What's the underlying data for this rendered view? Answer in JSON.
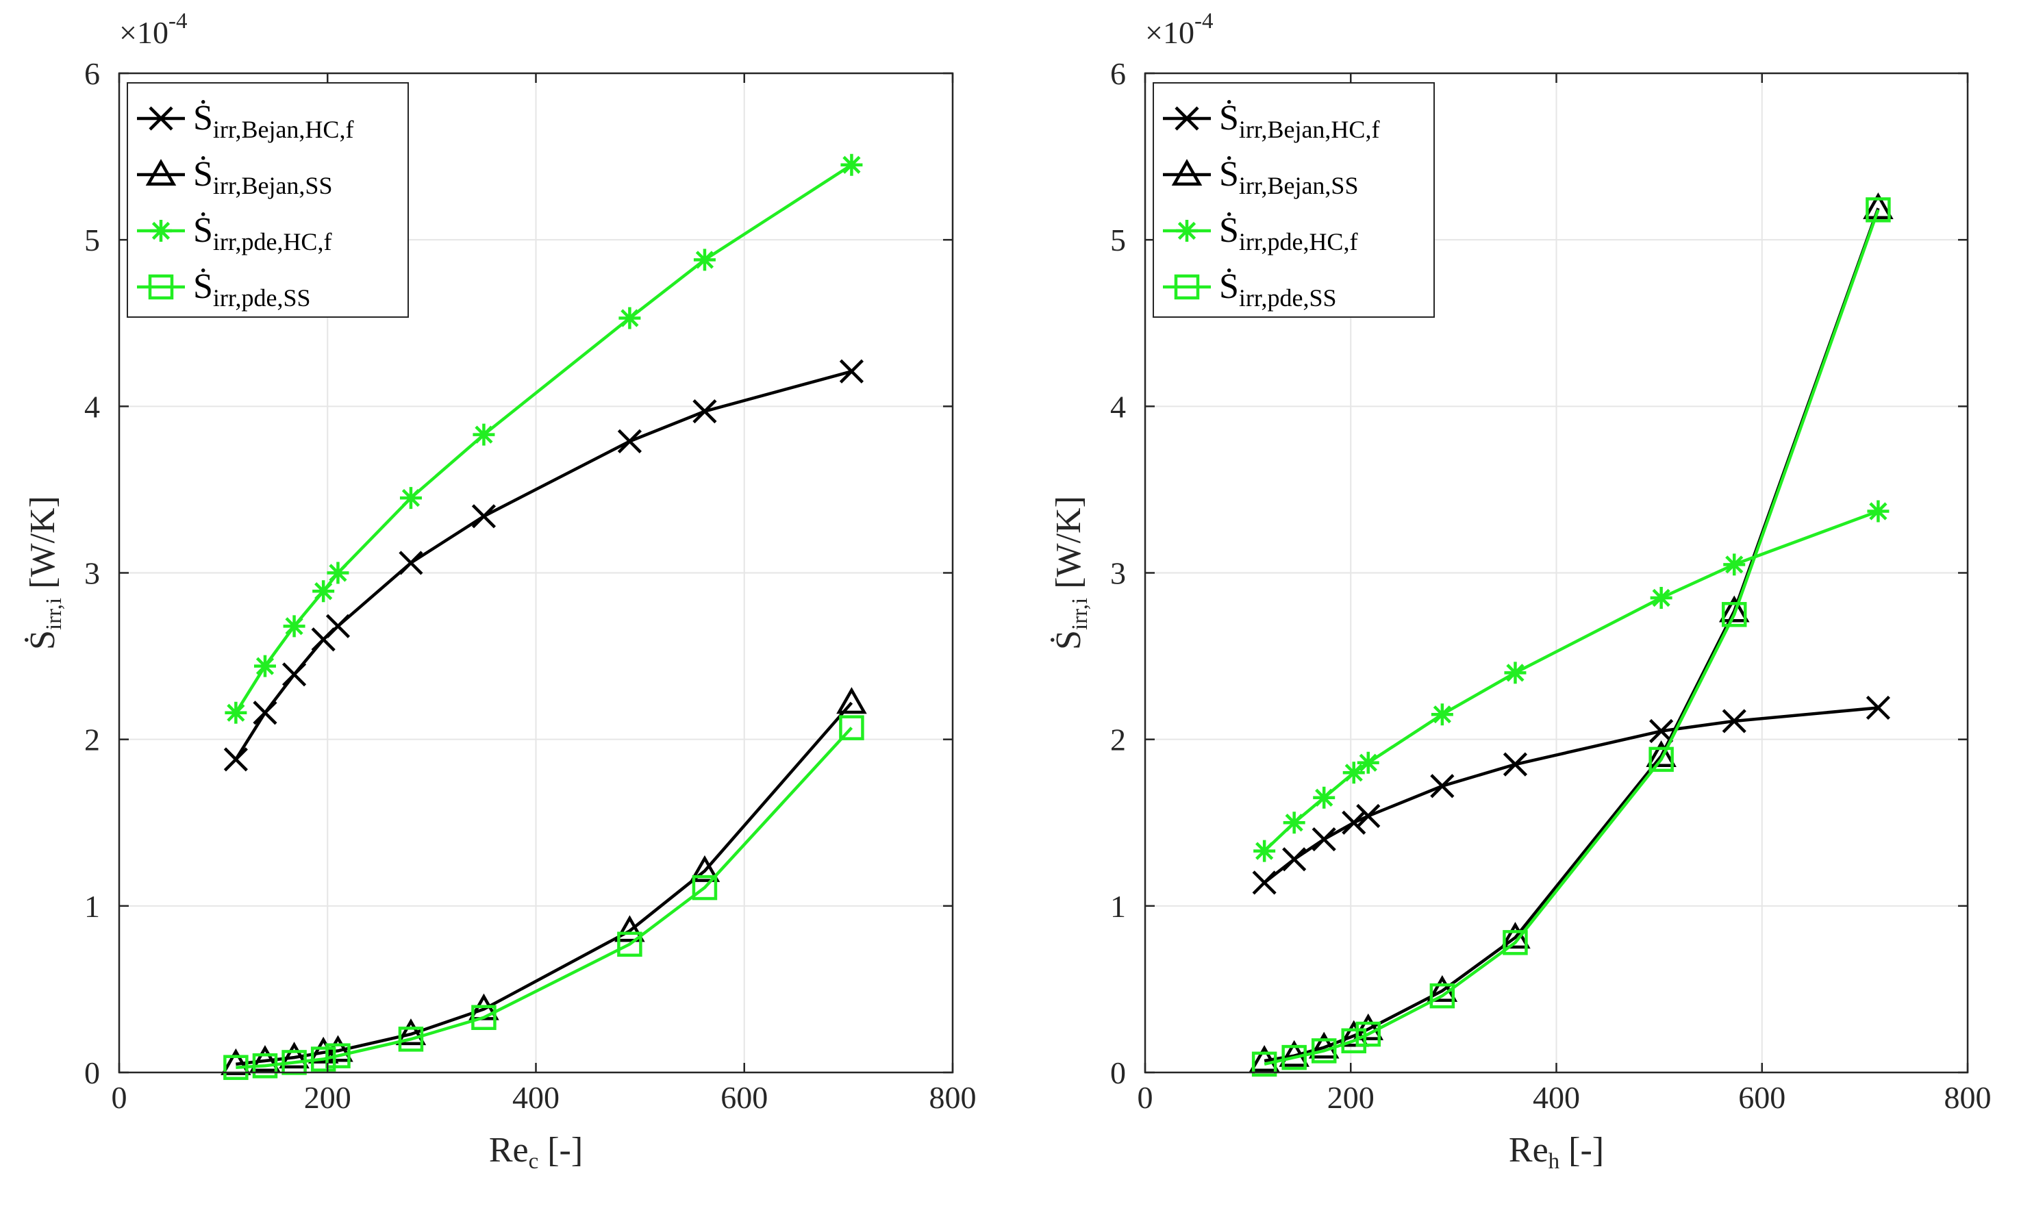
{
  "chart_data": [
    {
      "type": "line",
      "multiplier_label": "×10",
      "multiplier_exp": "-4",
      "x_label": {
        "base": "Re",
        "sub": "c",
        "suffix": "[-]"
      },
      "y_label": {
        "base": "Ṡ",
        "sub": "irr,i",
        "suffix": "[W/K]"
      },
      "xlim": [
        0,
        800
      ],
      "ylim": [
        0,
        6
      ],
      "xticks": [
        "0",
        "200",
        "400",
        "600",
        "800"
      ],
      "yticks": [
        "0",
        "1",
        "2",
        "3",
        "4",
        "5",
        "6"
      ],
      "grid": true,
      "legend_position": "top-left",
      "series": [
        {
          "name": "Ṡ",
          "sub": "irr,Bejan,HC,f",
          "color": "#000000",
          "marker": "x",
          "x": [
            112,
            140,
            168,
            196,
            210,
            280,
            350,
            490,
            562,
            703
          ],
          "y": [
            1.88,
            2.16,
            2.39,
            2.6,
            2.68,
            3.06,
            3.34,
            3.79,
            3.97,
            4.21
          ]
        },
        {
          "name": "Ṡ",
          "sub": "irr,Bejan,SS",
          "color": "#000000",
          "marker": "triangle",
          "x": [
            112,
            140,
            168,
            196,
            210,
            280,
            350,
            490,
            562,
            703
          ],
          "y": [
            0.05,
            0.07,
            0.09,
            0.12,
            0.13,
            0.23,
            0.38,
            0.85,
            1.21,
            2.22
          ]
        },
        {
          "name": "Ṡ",
          "sub": "irr,pde,HC,f",
          "color": "#22ee22",
          "marker": "asterisk",
          "x": [
            112,
            140,
            168,
            196,
            210,
            280,
            350,
            490,
            562,
            703
          ],
          "y": [
            2.16,
            2.44,
            2.68,
            2.89,
            3.0,
            3.45,
            3.83,
            4.53,
            4.88,
            5.45
          ]
        },
        {
          "name": "Ṡ",
          "sub": "irr,pde,SS",
          "color": "#22ee22",
          "marker": "square",
          "x": [
            112,
            140,
            168,
            196,
            210,
            280,
            350,
            490,
            562,
            703
          ],
          "y": [
            0.03,
            0.04,
            0.06,
            0.08,
            0.1,
            0.2,
            0.33,
            0.77,
            1.11,
            2.07
          ]
        }
      ]
    },
    {
      "type": "line",
      "multiplier_label": "×10",
      "multiplier_exp": "-4",
      "x_label": {
        "base": "Re",
        "sub": "h",
        "suffix": "[-]"
      },
      "y_label": {
        "base": "Ṡ",
        "sub": "irr,i",
        "suffix": "[W/K]"
      },
      "xlim": [
        0,
        800
      ],
      "ylim": [
        0,
        6
      ],
      "xticks": [
        "0",
        "200",
        "400",
        "600",
        "800"
      ],
      "yticks": [
        "0",
        "1",
        "2",
        "3",
        "4",
        "5",
        "6"
      ],
      "grid": true,
      "legend_position": "top-left",
      "series": [
        {
          "name": "Ṡ",
          "sub": "irr,Bejan,HC,f",
          "color": "#000000",
          "marker": "x",
          "x": [
            116,
            145,
            174,
            203,
            217,
            289,
            360,
            502,
            573,
            713
          ],
          "y": [
            1.14,
            1.28,
            1.4,
            1.5,
            1.54,
            1.72,
            1.85,
            2.05,
            2.11,
            2.19
          ]
        },
        {
          "name": "Ṡ",
          "sub": "irr,Bejan,SS",
          "color": "#000000",
          "marker": "triangle",
          "x": [
            116,
            145,
            174,
            203,
            217,
            289,
            360,
            502,
            573,
            713
          ],
          "y": [
            0.07,
            0.1,
            0.15,
            0.22,
            0.26,
            0.49,
            0.81,
            1.9,
            2.77,
            5.19
          ]
        },
        {
          "name": "Ṡ",
          "sub": "irr,pde,HC,f",
          "color": "#22ee22",
          "marker": "asterisk",
          "x": [
            116,
            145,
            174,
            203,
            217,
            289,
            360,
            502,
            573,
            713
          ],
          "y": [
            1.33,
            1.5,
            1.65,
            1.8,
            1.86,
            2.15,
            2.4,
            2.85,
            3.05,
            3.37
          ]
        },
        {
          "name": "Ṡ",
          "sub": "irr,pde,SS",
          "color": "#22ee22",
          "marker": "square",
          "x": [
            116,
            145,
            174,
            203,
            217,
            289,
            360,
            502,
            573,
            713
          ],
          "y": [
            0.05,
            0.09,
            0.13,
            0.19,
            0.23,
            0.46,
            0.78,
            1.88,
            2.75,
            5.18
          ]
        }
      ]
    }
  ]
}
